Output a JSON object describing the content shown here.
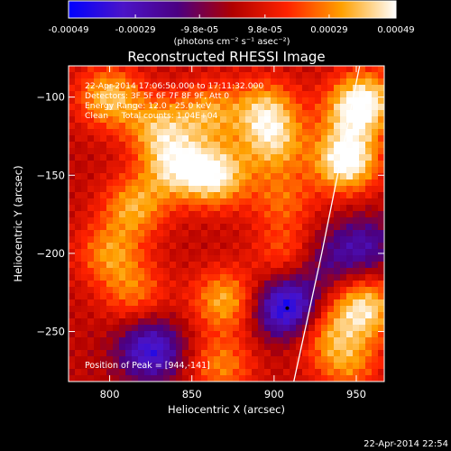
{
  "colorbar": {
    "tick_labels": [
      "-0.00049",
      "-0.00029",
      "-9.8e-05",
      "9.8e-05",
      "0.00029",
      "0.00049"
    ],
    "tick_values": [
      -0.00049,
      -0.00029,
      -9.8e-05,
      9.8e-05,
      0.00029,
      0.00049
    ],
    "range": [
      -0.00049,
      0.00049
    ],
    "unit_label": "(photons cm⁻² s⁻¹ asec⁻²)",
    "colors": [
      "#0000ff",
      "#4b14c8",
      "#4b0082",
      "#b00000",
      "#ff2200",
      "#ffa000",
      "#ffffff"
    ]
  },
  "chart_data": {
    "type": "heatmap",
    "title": "Reconstructed RHESSI Image",
    "xlabel": "Heliocentric X (arcsec)",
    "ylabel": "Heliocentric Y (arcsec)",
    "xlim": [
      775,
      967
    ],
    "ylim": [
      -282,
      -80
    ],
    "xticks": [
      800,
      850,
      900,
      950
    ],
    "yticks": [
      -100,
      -150,
      -200,
      -250
    ],
    "annotations": [
      "22-Apr-2014 17:06:50.000 to 17:11:32.000",
      "Detectors: 3F 5F 6F 7F 8F 9F, Att 0",
      "Energy Range: 12.0 - 25.0 keV",
      "Clean     Total counts: 1.04E+04"
    ],
    "peak_label": "Position of Peak = [944,-141]",
    "peak": [
      944,
      -141
    ],
    "limb_line": [
      [
        912,
        -282
      ],
      [
        929,
        -200
      ],
      [
        952,
        -80
      ]
    ],
    "sources": [
      {
        "x": 800,
        "y": -100,
        "value": 0.00035
      },
      {
        "x": 830,
        "y": -120,
        "value": 0.0003
      },
      {
        "x": 860,
        "y": -110,
        "value": 0.00028
      },
      {
        "x": 895,
        "y": -108,
        "value": 0.00033
      },
      {
        "x": 900,
        "y": -130,
        "value": 0.0003
      },
      {
        "x": 865,
        "y": -150,
        "value": 0.00042
      },
      {
        "x": 840,
        "y": -145,
        "value": 0.00035
      },
      {
        "x": 815,
        "y": -170,
        "value": 0.0003
      },
      {
        "x": 800,
        "y": -200,
        "value": 0.00026
      },
      {
        "x": 815,
        "y": -225,
        "value": 0.00022
      },
      {
        "x": 905,
        "y": -165,
        "value": 0.0002
      },
      {
        "x": 908,
        "y": -200,
        "value": 0.0002
      },
      {
        "x": 870,
        "y": -230,
        "value": 0.00032
      },
      {
        "x": 868,
        "y": -272,
        "value": 0.00025
      },
      {
        "x": 944,
        "y": -141,
        "value": 0.00049
      },
      {
        "x": 948,
        "y": -110,
        "value": 0.0003
      },
      {
        "x": 957,
        "y": -100,
        "value": 0.00028
      },
      {
        "x": 955,
        "y": -235,
        "value": 0.0004
      },
      {
        "x": 945,
        "y": -270,
        "value": 0.00025
      },
      {
        "x": 930,
        "y": -250,
        "value": 0.00022
      },
      {
        "x": 908,
        "y": -235,
        "value": -0.00049
      },
      {
        "x": 825,
        "y": -262,
        "value": -0.0004
      },
      {
        "x": 930,
        "y": -205,
        "value": -0.00018
      },
      {
        "x": 955,
        "y": -195,
        "value": -0.00025
      }
    ]
  },
  "timestamp": "22-Apr-2014 22:54"
}
